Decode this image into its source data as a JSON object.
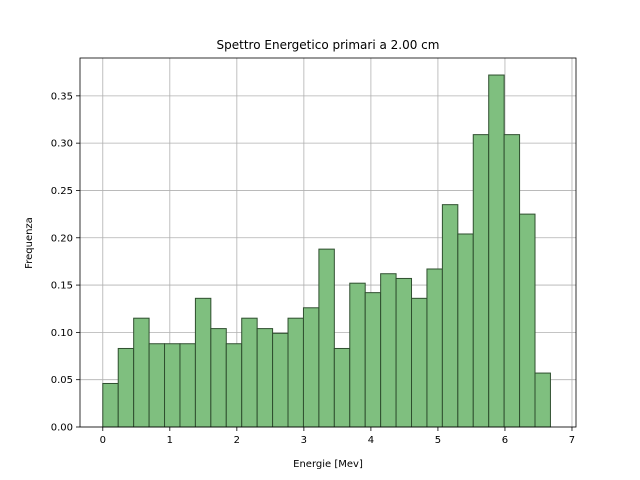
{
  "chart_data": {
    "type": "bar",
    "title": "Spettro Energetico primari a 2.00 cm",
    "xlabel": "Energie [Mev]",
    "ylabel": "Frequenza",
    "xlim": [
      -0.34,
      7.06
    ],
    "ylim": [
      0,
      0.39
    ],
    "xticks": [
      "0",
      "1",
      "2",
      "3",
      "4",
      "5",
      "6",
      "7"
    ],
    "yticks": [
      "0.00",
      "0.05",
      "0.10",
      "0.15",
      "0.20",
      "0.25",
      "0.30",
      "0.35"
    ],
    "grid": true,
    "bin_width": 0.2303,
    "bin_starts": [
      0.0,
      0.2303,
      0.4606,
      0.6909,
      0.9212,
      1.1515,
      1.3818,
      1.6121,
      1.8424,
      2.0727,
      2.303,
      2.5333,
      2.7636,
      2.9939,
      3.2242,
      3.4545,
      3.6848,
      3.9151,
      4.1454,
      4.3757,
      4.606,
      4.8363,
      5.0666,
      5.2969,
      5.5272,
      5.7575,
      5.9878,
      6.2181,
      6.4484
    ],
    "values": [
      0.046,
      0.083,
      0.115,
      0.088,
      0.088,
      0.088,
      0.136,
      0.104,
      0.088,
      0.115,
      0.104,
      0.099,
      0.115,
      0.126,
      0.188,
      0.083,
      0.152,
      0.142,
      0.162,
      0.157,
      0.136,
      0.167,
      0.235,
      0.204,
      0.309,
      0.372,
      0.309,
      0.225,
      0.057
    ],
    "colors": {
      "bar_fill": "#7fbf7f",
      "bar_edge": "#2f4f2f",
      "grid": "#b0b0b0"
    }
  }
}
